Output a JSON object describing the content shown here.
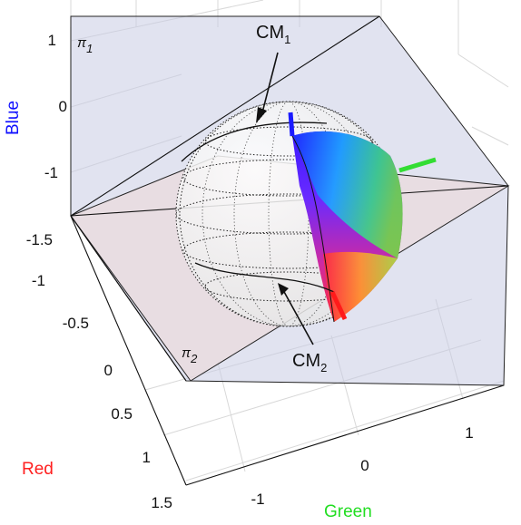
{
  "axes": {
    "blue": {
      "label": "Blue",
      "color": "#1010ff",
      "ticks": [
        "1",
        "0",
        "-1"
      ]
    },
    "red": {
      "label": "Red",
      "color": "#ff2020",
      "ticks": [
        "-1.5",
        "-1",
        "-0.5",
        "0",
        "0.5",
        "1",
        "1.5"
      ]
    },
    "green": {
      "label": "Green",
      "color": "#22dd22",
      "ticks": [
        "-1",
        "0",
        "1"
      ]
    }
  },
  "planes": [
    {
      "symbol": "π",
      "subscript": "1",
      "fill": "#c9cce3"
    },
    {
      "symbol": "π",
      "subscript": "2",
      "fill": "#ecd8d8"
    }
  ],
  "annotations": [
    {
      "text": "CM",
      "subscript": "1"
    },
    {
      "text": "CM",
      "subscript": "2"
    }
  ],
  "colors": {
    "red_vector": "#ff1a1a",
    "green_vector": "#33dd33",
    "blue_vector": "#1a1aff"
  }
}
